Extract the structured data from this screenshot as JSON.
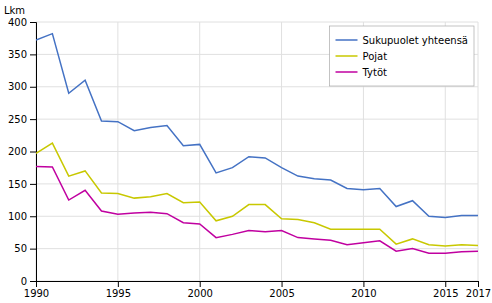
{
  "chart_data": {
    "type": "line",
    "ylabel": "Lkm",
    "x": [
      1990,
      1991,
      1992,
      1993,
      1994,
      1995,
      1996,
      1997,
      1998,
      1999,
      2000,
      2001,
      2002,
      2003,
      2004,
      2005,
      2006,
      2007,
      2008,
      2009,
      2010,
      2011,
      2012,
      2013,
      2014,
      2015,
      2016,
      2017
    ],
    "series": [
      {
        "name": "Sukupuolet yhteensä",
        "color": "#4472c4",
        "values": [
          372,
          382,
          290,
          310,
          247,
          246,
          232,
          237,
          240,
          209,
          211,
          167,
          175,
          192,
          190,
          175,
          162,
          158,
          156,
          143,
          141,
          143,
          115,
          124,
          100,
          98,
          101,
          101
        ]
      },
      {
        "name": "Pojat",
        "color": "#c8c800",
        "values": [
          197,
          213,
          162,
          170,
          136,
          135,
          128,
          130,
          135,
          121,
          122,
          93,
          100,
          118,
          118,
          96,
          95,
          90,
          80,
          80,
          80,
          80,
          57,
          65,
          56,
          54,
          56,
          55
        ]
      },
      {
        "name": "Tytöt",
        "color": "#c000a0",
        "values": [
          177,
          176,
          125,
          140,
          108,
          103,
          105,
          106,
          104,
          90,
          88,
          67,
          72,
          78,
          76,
          78,
          67,
          65,
          63,
          56,
          59,
          62,
          46,
          50,
          43,
          43,
          45,
          46
        ]
      }
    ],
    "xlim": [
      1990,
      2017
    ],
    "xticks": [
      1990,
      1995,
      2000,
      2005,
      2010,
      2015,
      2017
    ],
    "ylim": [
      0,
      400
    ],
    "yticks": [
      0,
      50,
      100,
      150,
      200,
      250,
      300,
      350,
      400
    ],
    "grid": true,
    "legend": "upper right"
  }
}
